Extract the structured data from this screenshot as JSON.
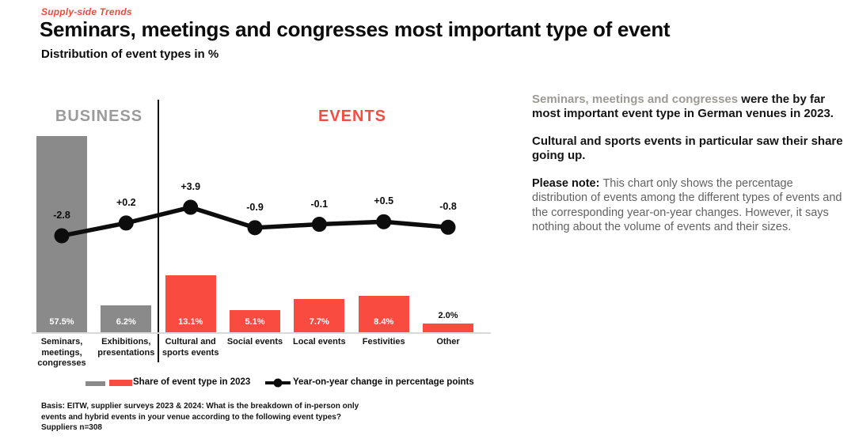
{
  "header": {
    "eyebrow": "Supply-side Trends",
    "title": "Seminars, meetings and congresses most important type of event",
    "subtitle": "Distribution of event types in %"
  },
  "colors": {
    "red": "#f94b40",
    "gray_bar": "#8a8a8a",
    "section_gray": "#9b9b9b",
    "line": "#0d0d0d",
    "axis": "#d9d9d9",
    "value_label_inside": "#ffffff",
    "value_label_outside": "#0c0c0c"
  },
  "chart_data": {
    "type": "bar",
    "title": "Distribution of event types in %",
    "sections": [
      {
        "label": "BUSINESS",
        "color": "#9b9b9b",
        "category_count": 2
      },
      {
        "label": "EVENTS",
        "color": "#f94b40",
        "category_count": 5
      }
    ],
    "categories": [
      "Seminars, meetings, congresses",
      "Exhibitions, presentations",
      "Cultural and sports events",
      "Social events",
      "Local events",
      "Festivities",
      "Other"
    ],
    "category_lines": [
      [
        "Seminars,",
        "meetings,",
        "congresses"
      ],
      [
        "Exhibitions,",
        "presentations"
      ],
      [
        "Cultural and",
        "sports events"
      ],
      [
        "Social events"
      ],
      [
        "Local events"
      ],
      [
        "Festivities"
      ],
      [
        "Other"
      ]
    ],
    "series": [
      {
        "name": "Share of event type in 2023",
        "type": "bar",
        "unit": "%",
        "values": [
          57.5,
          6.2,
          13.1,
          5.1,
          7.7,
          8.4,
          2.0
        ],
        "labels": [
          "57.5%",
          "6.2%",
          "13.1%",
          "5.1%",
          "7.7%",
          "8.4%",
          "2.0%"
        ],
        "groups": [
          "business",
          "business",
          "events",
          "events",
          "events",
          "events",
          "events"
        ]
      },
      {
        "name": "Year-on-year change in percentage points",
        "type": "line",
        "values": [
          -2.8,
          0.2,
          3.9,
          -0.9,
          -0.1,
          0.5,
          -0.8
        ],
        "labels": [
          "-2.8",
          "+0.2",
          "+3.9",
          "-0.9",
          "-0.1",
          "+0.5",
          "-0.8"
        ]
      }
    ],
    "legend_position": "bottom",
    "grid": false
  },
  "aside": {
    "p1_highlight": "Seminars, meetings and congresses",
    "p1_rest": " were the by far most important event type in German venues in 2023.",
    "p2": "Cultural and sports events in particular saw their share going up.",
    "p3_label": "Please note: ",
    "p3_rest": "This chart only shows the percentage distribution of events among the different types of events and the corresponding year-on-year changes. However, it says nothing about the volume of events and their sizes."
  },
  "footnote": {
    "lines": [
      "Basis: EITW, supplier surveys 2023 & 2024: What is the breakdown of in-person only",
      "events and hybrid events in your venue according to the following event types?",
      "Suppliers n=308"
    ]
  }
}
